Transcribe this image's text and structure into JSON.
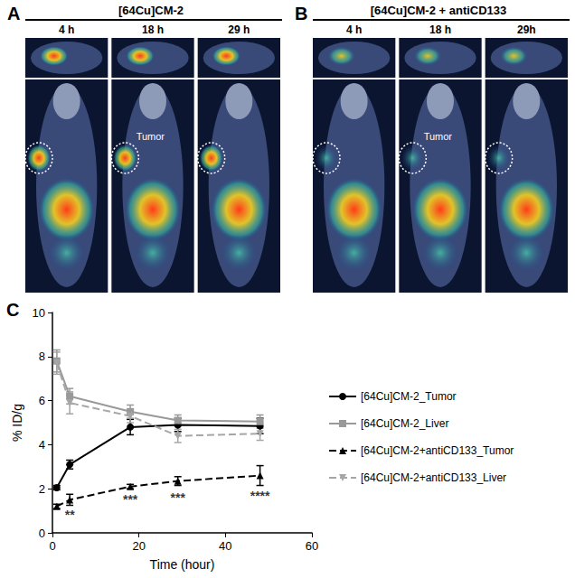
{
  "image_panels": [
    {
      "label": "A",
      "title": "[64Cu]CM-2",
      "times": [
        "4 h",
        "18 h",
        "29 h"
      ],
      "annotation": "Tumor"
    },
    {
      "label": "B",
      "title": "[64Cu]CM-2 + antiCD133",
      "times": [
        "4 h",
        "18 h",
        "29h"
      ],
      "annotation": "Tumor"
    }
  ],
  "chart_data": {
    "type": "line",
    "panel_label": "C",
    "x_label": "Time (hour)",
    "y_label": "% ID/g",
    "xlim": [
      0,
      60
    ],
    "xticks": [
      0,
      20,
      40,
      60
    ],
    "ylim": [
      0,
      10
    ],
    "yticks": [
      0,
      2,
      4,
      6,
      8,
      10
    ],
    "grid": false,
    "legend": "right",
    "x": [
      1,
      4,
      18,
      29,
      48
    ],
    "series": [
      {
        "name": "[64Cu]CM-2_Tumor",
        "color": "#000000",
        "marker": "circle",
        "line_style": "solid",
        "values": [
          2.05,
          3.1,
          4.8,
          4.9,
          4.85
        ],
        "errors": [
          0.1,
          0.2,
          0.35,
          0.3,
          0.35
        ]
      },
      {
        "name": "[64Cu]CM-2_Liver",
        "color": "#999999",
        "marker": "square",
        "line_style": "solid",
        "values": [
          7.8,
          6.2,
          5.5,
          5.1,
          5.05
        ],
        "errors": [
          0.5,
          0.35,
          0.3,
          0.25,
          0.3
        ]
      },
      {
        "name": "[64Cu]CM-2+antiCD133_Tumor",
        "color": "#000000",
        "marker": "triangle",
        "line_style": "dashed",
        "values": [
          1.2,
          1.5,
          2.1,
          2.35,
          2.6
        ],
        "errors": [
          0.1,
          0.25,
          0.1,
          0.2,
          0.45
        ]
      },
      {
        "name": "[64Cu]CM-2+antiCD133_Liver",
        "color": "#a6a6a6",
        "marker": "triangle-down",
        "line_style": "dashed",
        "values": [
          7.7,
          5.9,
          5.3,
          4.4,
          4.5
        ],
        "errors": [
          0.5,
          0.5,
          0.3,
          0.3,
          0.3
        ]
      }
    ],
    "annotations": [
      {
        "x": 4,
        "y": 0.8,
        "text": "**"
      },
      {
        "x": 18,
        "y": 1.5,
        "text": "***"
      },
      {
        "x": 29,
        "y": 1.6,
        "text": "***"
      },
      {
        "x": 48,
        "y": 1.7,
        "text": "****"
      }
    ]
  }
}
